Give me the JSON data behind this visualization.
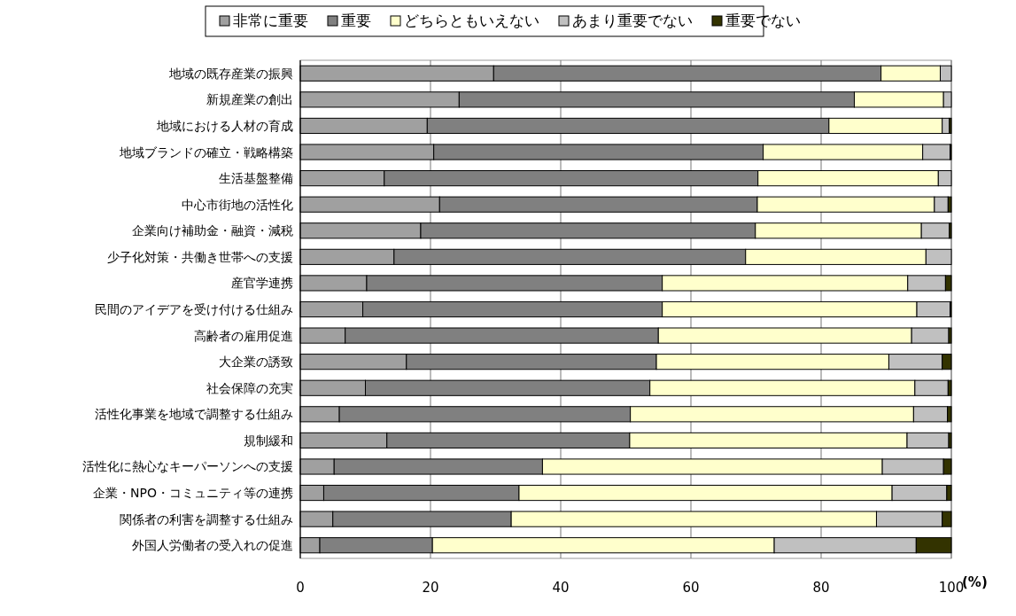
{
  "chart_data": {
    "type": "bar",
    "orientation": "horizontal",
    "stacked": true,
    "xlabel": "(%)",
    "categories": [
      "地域の既存産業の振興",
      "新規産業の創出",
      "地域における人材の育成",
      "地域ブランドの確立・戦略構築",
      "生活基盤整備",
      "中心市街地の活性化",
      "企業向け補助金・融資・減税",
      "少子化対策・共働き世帯への支援",
      "産官学連携",
      "民間のアイデアを受け付ける仕組み",
      "高齢者の雇用促進",
      "大企業の誘致",
      "社会保障の充実",
      "活性化事業を地域で調整する仕組み",
      "規制緩和",
      "活性化に熱心なキーパーソンへの支援",
      "企業・NPO・コミュニティ等の連携",
      "関係者の利害を調整する仕組み",
      "外国人労働者の受入れの促進"
    ],
    "series": [
      {
        "name": "非常に重要",
        "color": "#a0a0a0",
        "values": [
          29.7,
          24.4,
          19.5,
          20.5,
          12.9,
          21.4,
          18.5,
          14.4,
          10.2,
          9.6,
          6.9,
          16.3,
          10.0,
          6.0,
          13.3,
          5.2,
          3.6,
          5.0,
          3.0
        ]
      },
      {
        "name": "重要",
        "color": "#808080",
        "values": [
          59.5,
          60.7,
          61.7,
          50.6,
          57.4,
          48.8,
          51.4,
          54.0,
          45.4,
          46.0,
          48.1,
          38.4,
          43.7,
          44.7,
          37.3,
          32.0,
          30.0,
          27.4,
          17.3
        ]
      },
      {
        "name": "どちらともいえない",
        "color": "#ffffcc",
        "values": [
          9.1,
          13.7,
          17.4,
          24.5,
          27.7,
          27.2,
          25.5,
          27.7,
          37.7,
          39.1,
          38.9,
          35.7,
          40.7,
          43.5,
          42.6,
          52.2,
          57.3,
          56.1,
          52.5
        ]
      },
      {
        "name": "あまり重要でない",
        "color": "#c0c0c0",
        "values": [
          1.7,
          1.2,
          1.1,
          4.2,
          2.0,
          2.1,
          4.3,
          3.9,
          5.8,
          5.1,
          5.7,
          8.2,
          5.1,
          5.2,
          6.4,
          9.4,
          8.4,
          10.1,
          21.8
        ]
      },
      {
        "name": "重要でない",
        "color": "#333300",
        "values": [
          0,
          0,
          0.3,
          0.2,
          0,
          0.5,
          0.3,
          0,
          0.9,
          0.2,
          0.4,
          1.4,
          0.5,
          0.6,
          0.4,
          1.2,
          0.7,
          1.4,
          5.4
        ]
      }
    ],
    "xlim": [
      0,
      100
    ],
    "xticks": [
      0,
      20,
      40,
      60,
      80,
      100
    ],
    "grid": "x",
    "legend": "top"
  }
}
